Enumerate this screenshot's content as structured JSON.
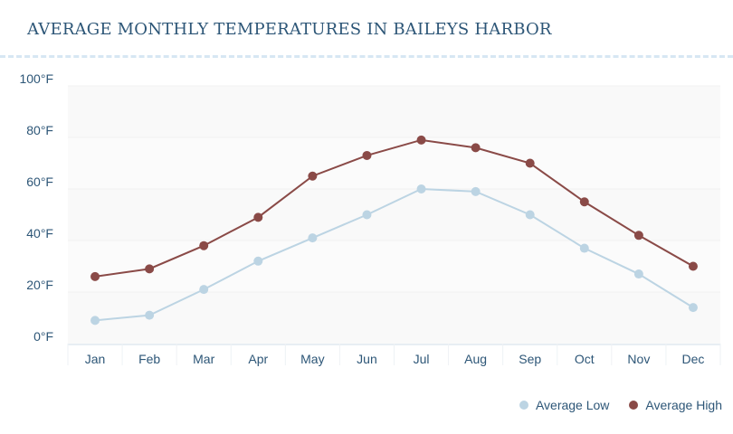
{
  "chart_data": {
    "type": "line",
    "title": "AVERAGE MONTHLY TEMPERATURES IN BAILEYS HARBOR",
    "xlabel": "",
    "ylabel": "",
    "categories": [
      "Jan",
      "Feb",
      "Mar",
      "Apr",
      "May",
      "Jun",
      "Jul",
      "Aug",
      "Sep",
      "Oct",
      "Nov",
      "Dec"
    ],
    "y_ticks": [
      "0°F",
      "20°F",
      "40°F",
      "60°F",
      "80°F",
      "100°F"
    ],
    "ylim": [
      0,
      100
    ],
    "grid": true,
    "legend_position": "bottom-right",
    "series": [
      {
        "name": "Average Low",
        "color": "#bcd4e3",
        "values": [
          9,
          11,
          21,
          32,
          41,
          50,
          60,
          59,
          50,
          37,
          27,
          14
        ]
      },
      {
        "name": "Average High",
        "color": "#8a4a47",
        "values": [
          26,
          29,
          38,
          49,
          65,
          73,
          79,
          76,
          70,
          55,
          42,
          30
        ]
      }
    ]
  }
}
